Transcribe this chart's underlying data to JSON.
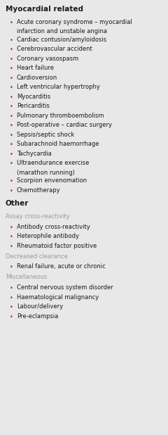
{
  "background_color": "#e8e8e8",
  "bullet_color": "#cc2222",
  "text_color": "#1a1a1a",
  "subheader_color": "#999999",
  "header_fontsize": 7.5,
  "item_fontsize": 6.0,
  "subheader_fontsize": 6.0,
  "sections": [
    {
      "header": "Myocardial related",
      "subgroups": [
        {
          "subheader": null,
          "items": [
            [
              "Acute coronary syndrome – myocardial",
              "infarction and unstable angina"
            ],
            [
              "Cardiac contusion/amyloidosis"
            ],
            [
              "Cerebrovascular accident"
            ],
            [
              "Coronary vasospasm"
            ],
            [
              "Heart failure"
            ],
            [
              "Cardioversion"
            ],
            [
              "Left ventricular hypertrophy"
            ],
            [
              "Myocarditis"
            ],
            [
              "Pericarditis"
            ],
            [
              "Pulmonary thromboembolism"
            ],
            [
              "Post-operative – cardiac surgery"
            ],
            [
              "Sepsis/septic shock"
            ],
            [
              "Subarachnoid haemorrhage"
            ],
            [
              "Tachycardia"
            ],
            [
              "Ultraendurance exercise",
              "(marathon running)"
            ],
            [
              "Scorpion envenomation"
            ],
            [
              "Chemotherapy"
            ]
          ]
        }
      ]
    },
    {
      "header": "Other",
      "subgroups": [
        {
          "subheader": "Assay cross-reactivity",
          "items": [
            [
              "Antibody cross-reactivity"
            ],
            [
              "Heterophile antibody"
            ],
            [
              "Rheumatoid factor positive"
            ]
          ]
        },
        {
          "subheader": "Decreased clearance",
          "items": [
            [
              "Renal failure, acute or chronic"
            ]
          ]
        },
        {
          "subheader": "Miscellaneous",
          "items": [
            [
              "Central nervous system disorder"
            ],
            [
              "Haematological malignancy"
            ],
            [
              "Labour/delivery"
            ],
            [
              "Pre-eclampsia"
            ]
          ]
        }
      ]
    }
  ]
}
